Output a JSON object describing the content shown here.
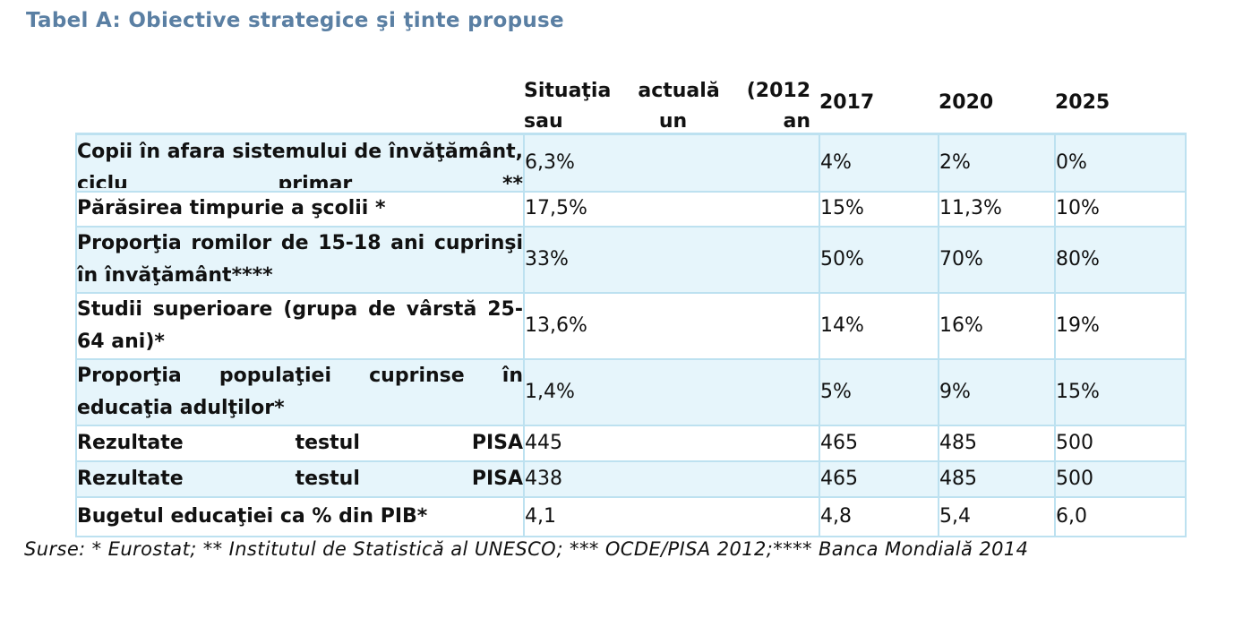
{
  "title": "Tabel A: Obiective strategice şi ţinte propuse",
  "table": {
    "headers": {
      "situation": "Situaţia actuală (2012 sau un an",
      "y2017": "2017",
      "y2020": "2020",
      "y2025": "2025"
    },
    "rows": [
      {
        "label": "Copii în afara sistemului de învăţământ, ciclu primar **",
        "current": "6,3%",
        "y2017": "4%",
        "y2020": "2%",
        "y2025": "0%"
      },
      {
        "label": "Părăsirea timpurie a şcolii *",
        "current": "17,5%",
        "y2017": "15%",
        "y2020": "11,3%",
        "y2025": "10%"
      },
      {
        "label": "Proporţia romilor de 15-18 ani cuprinşi în învăţământ****",
        "current": "33%",
        "y2017": "50%",
        "y2020": "70%",
        "y2025": "80%"
      },
      {
        "label": "Studii superioare (grupa de vârstă 25-64 ani)*",
        "current": "13,6%",
        "y2017": "14%",
        "y2020": "16%",
        "y2025": "19%"
      },
      {
        "label": "Proporţia populaţiei cuprinse în educaţia adulţilor*",
        "current": "1,4%",
        "y2017": "5%",
        "y2020": "9%",
        "y2025": "15%"
      },
      {
        "label": "Rezultate testul PISA",
        "current": "445",
        "y2017": "465",
        "y2020": "485",
        "y2025": "500"
      },
      {
        "label": "Rezultate testul PISA",
        "current": "438",
        "y2017": "465",
        "y2020": "485",
        "y2025": "500"
      },
      {
        "label": "Bugetul educaţiei ca % din PIB*",
        "current": "4,1",
        "y2017": "4,8",
        "y2020": "5,4",
        "y2025": "6,0"
      }
    ]
  },
  "footnote": "Surse: * Eurostat; ** Institutul de Statistică al UNESCO; *** OCDE/PISA 2012;**** Banca Mondială 2014"
}
